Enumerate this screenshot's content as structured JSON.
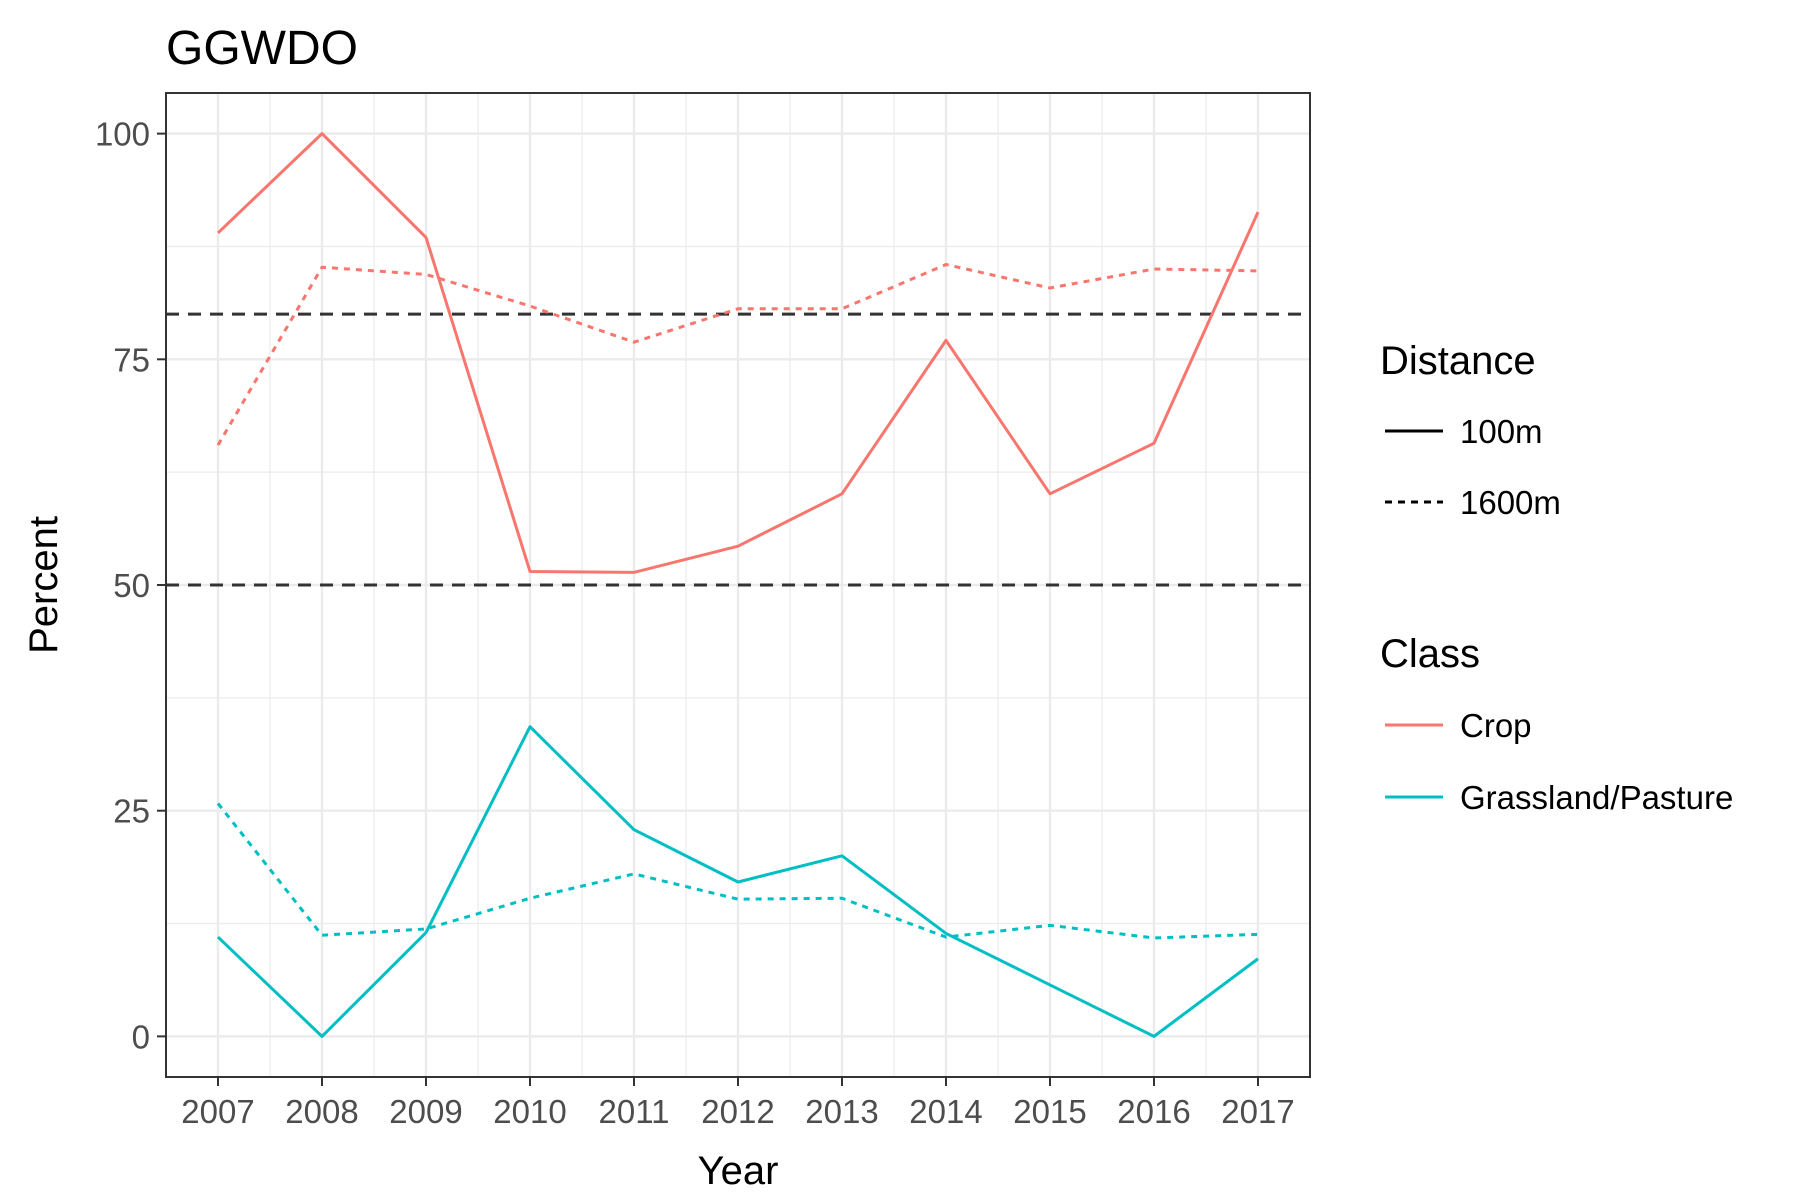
{
  "chart_data": {
    "type": "line",
    "title": "GGWDO",
    "xlabel": "Year",
    "ylabel": "Percent",
    "x": [
      2007,
      2008,
      2009,
      2010,
      2011,
      2012,
      2013,
      2014,
      2015,
      2016,
      2017
    ],
    "x_tick_labels": [
      "2007",
      "2008",
      "2009",
      "2010",
      "2011",
      "2012",
      "2013",
      "2014",
      "2015",
      "2016",
      "2017"
    ],
    "ylim": [
      -4.5,
      104.5
    ],
    "y_ticks": [
      0,
      25,
      50,
      75,
      100
    ],
    "y_tick_labels": [
      "0",
      "25",
      "50",
      "75",
      "100"
    ],
    "grid": true,
    "reference_lines": [
      50,
      80
    ],
    "series": [
      {
        "class": "Crop",
        "distance": "100m",
        "color": "#F8766D",
        "linetype": "solid",
        "values": [
          89,
          100,
          88.5,
          51.5,
          51.4,
          54.3,
          60.1,
          77.1,
          60.1,
          65.7,
          91.3
        ]
      },
      {
        "class": "Crop",
        "distance": "1600m",
        "color": "#F8766D",
        "linetype": "dotted",
        "values": [
          65.5,
          85.2,
          84.4,
          80.9,
          76.9,
          80.6,
          80.6,
          85.5,
          82.9,
          85.0,
          84.8
        ]
      },
      {
        "class": "Grassland/Pasture",
        "distance": "100m",
        "color": "#00BFC4",
        "linetype": "solid",
        "values": [
          11.0,
          0,
          11.5,
          34.3,
          22.9,
          17.1,
          20.0,
          11.4,
          5.7,
          0,
          8.6
        ]
      },
      {
        "class": "Grassland/Pasture",
        "distance": "1600m",
        "color": "#00BFC4",
        "linetype": "dotted",
        "values": [
          25.8,
          11.2,
          11.9,
          15.3,
          18.0,
          15.2,
          15.3,
          11.0,
          12.3,
          10.9,
          11.3
        ]
      }
    ],
    "legend": {
      "placement": "right",
      "distance": {
        "title": "Distance",
        "items": [
          {
            "label": "100m",
            "linetype": "solid"
          },
          {
            "label": "1600m",
            "linetype": "dotted"
          }
        ]
      },
      "class": {
        "title": "Class",
        "items": [
          {
            "label": "Crop",
            "color": "#F8766D"
          },
          {
            "label": "Grassland/Pasture",
            "color": "#00BFC4"
          }
        ]
      }
    }
  }
}
